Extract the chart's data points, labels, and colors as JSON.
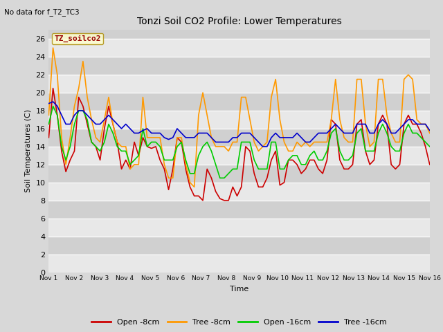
{
  "title": "Tonzi Soil CO2 Profile: Lower Temperatures",
  "annotation_topleft": "No data for f_T2_TC3",
  "xlabel": "Time",
  "ylabel": "Soil Temperatures (C)",
  "ylim": [
    0,
    27
  ],
  "yticks": [
    0,
    2,
    4,
    6,
    8,
    10,
    12,
    14,
    16,
    18,
    20,
    22,
    24,
    26
  ],
  "xtick_labels": [
    "Nov 1",
    "Nov 2",
    "Nov 3",
    "Nov 4",
    "Nov 5",
    "Nov 6",
    "Nov 7",
    "Nov 8",
    "Nov 9",
    "Nov 10",
    "Nov 11",
    "Nov 12",
    "Nov 13",
    "Nov 14",
    "Nov 15",
    "Nov 16"
  ],
  "legend_title": "TZ_soilco2",
  "legend_entries": [
    "Open -8cm",
    "Tree -8cm",
    "Open -16cm",
    "Tree -16cm"
  ],
  "line_colors": [
    "#cc0000",
    "#ff9900",
    "#00cc00",
    "#0000cc"
  ],
  "bg_color": "#d8d8d8",
  "plot_bg_color": "#d0d0d0",
  "white_band_color": "#e8e8e8",
  "legend_box_color": "#ffffcc",
  "legend_title_color": "#990000",
  "open_8cm": [
    15.0,
    20.5,
    17.5,
    13.5,
    11.2,
    12.5,
    13.5,
    19.5,
    18.5,
    16.5,
    14.5,
    14.0,
    12.5,
    16.0,
    18.5,
    16.5,
    14.5,
    11.5,
    12.5,
    11.5,
    14.5,
    13.0,
    15.0,
    14.0,
    13.8,
    14.0,
    12.5,
    11.5,
    9.2,
    11.5,
    15.0,
    14.5,
    11.5,
    9.5,
    8.5,
    8.5,
    8.0,
    11.5,
    10.5,
    9.0,
    8.2,
    8.0,
    8.0,
    9.5,
    8.5,
    9.5,
    14.0,
    13.5,
    11.0,
    9.5,
    9.5,
    10.5,
    12.5,
    13.5,
    9.7,
    10.0,
    12.5,
    12.5,
    12.0,
    11.0,
    11.5,
    12.5,
    12.5,
    11.5,
    11.0,
    12.5,
    17.0,
    16.5,
    12.5,
    11.5,
    11.5,
    12.0,
    16.5,
    17.0,
    13.5,
    12.0,
    12.5,
    16.5,
    17.5,
    16.5,
    12.0,
    11.5,
    12.0,
    16.5,
    17.5,
    16.5,
    16.5,
    15.5,
    14.0,
    12.0
  ],
  "tree_8cm": [
    17.5,
    25.0,
    22.0,
    15.0,
    12.0,
    15.0,
    18.5,
    20.5,
    23.5,
    19.5,
    17.0,
    15.0,
    14.5,
    17.0,
    19.5,
    16.5,
    14.5,
    14.0,
    14.0,
    11.5,
    12.0,
    12.0,
    19.5,
    15.0,
    15.0,
    15.0,
    15.0,
    12.0,
    10.5,
    10.5,
    15.0,
    15.0,
    12.0,
    10.0,
    9.5,
    17.5,
    20.0,
    17.5,
    15.0,
    14.0,
    14.0,
    14.0,
    13.5,
    14.5,
    14.5,
    19.5,
    19.5,
    17.0,
    14.5,
    13.5,
    14.0,
    14.5,
    19.5,
    21.5,
    17.0,
    14.5,
    13.5,
    13.5,
    14.5,
    14.0,
    14.5,
    14.0,
    14.5,
    14.5,
    14.5,
    14.5,
    17.0,
    21.5,
    17.0,
    15.0,
    14.5,
    14.5,
    21.5,
    21.5,
    16.5,
    14.0,
    14.5,
    21.5,
    21.5,
    17.5,
    15.5,
    14.5,
    14.5,
    21.5,
    22.0,
    21.5,
    17.0,
    16.5,
    16.5,
    15.5
  ],
  "open_16cm": [
    16.5,
    18.5,
    17.5,
    14.0,
    12.5,
    14.0,
    16.5,
    18.0,
    18.0,
    17.0,
    14.5,
    14.0,
    13.5,
    14.5,
    16.5,
    15.5,
    14.0,
    13.5,
    13.5,
    12.0,
    12.5,
    13.0,
    16.0,
    14.0,
    14.5,
    14.5,
    14.0,
    12.5,
    12.5,
    12.5,
    14.0,
    14.5,
    12.5,
    11.0,
    11.0,
    13.0,
    14.0,
    14.5,
    13.5,
    12.0,
    10.5,
    10.5,
    11.0,
    11.5,
    11.5,
    14.5,
    14.5,
    14.5,
    12.5,
    11.5,
    11.5,
    11.5,
    14.5,
    14.5,
    11.5,
    11.5,
    12.5,
    13.0,
    13.0,
    12.0,
    12.0,
    13.0,
    13.5,
    12.5,
    12.5,
    13.5,
    15.5,
    16.0,
    13.5,
    12.5,
    12.5,
    13.0,
    15.5,
    16.0,
    13.5,
    13.5,
    13.5,
    15.5,
    16.5,
    15.5,
    14.0,
    13.5,
    13.5,
    15.5,
    16.5,
    15.5,
    15.5,
    15.0,
    14.5,
    14.0
  ],
  "tree_16cm": [
    18.8,
    19.0,
    18.5,
    17.5,
    16.5,
    16.5,
    17.5,
    18.0,
    18.0,
    17.5,
    17.0,
    16.5,
    16.5,
    17.0,
    17.5,
    17.0,
    16.5,
    16.0,
    16.5,
    16.0,
    15.5,
    15.5,
    15.8,
    16.0,
    15.5,
    15.5,
    15.5,
    15.0,
    14.8,
    15.0,
    16.0,
    15.5,
    15.0,
    15.0,
    15.0,
    15.5,
    15.5,
    15.5,
    15.0,
    14.5,
    14.5,
    14.5,
    14.5,
    15.0,
    15.0,
    15.5,
    15.5,
    15.5,
    15.0,
    14.5,
    14.0,
    14.0,
    15.0,
    15.5,
    15.0,
    15.0,
    15.0,
    15.0,
    15.5,
    15.0,
    14.5,
    14.5,
    15.0,
    15.5,
    15.5,
    15.5,
    16.0,
    16.5,
    16.0,
    15.5,
    15.5,
    15.5,
    16.5,
    16.5,
    16.5,
    15.5,
    15.5,
    16.5,
    17.0,
    16.5,
    15.5,
    15.5,
    16.0,
    16.5,
    17.0,
    17.0,
    16.5,
    16.5,
    16.5,
    15.8
  ]
}
